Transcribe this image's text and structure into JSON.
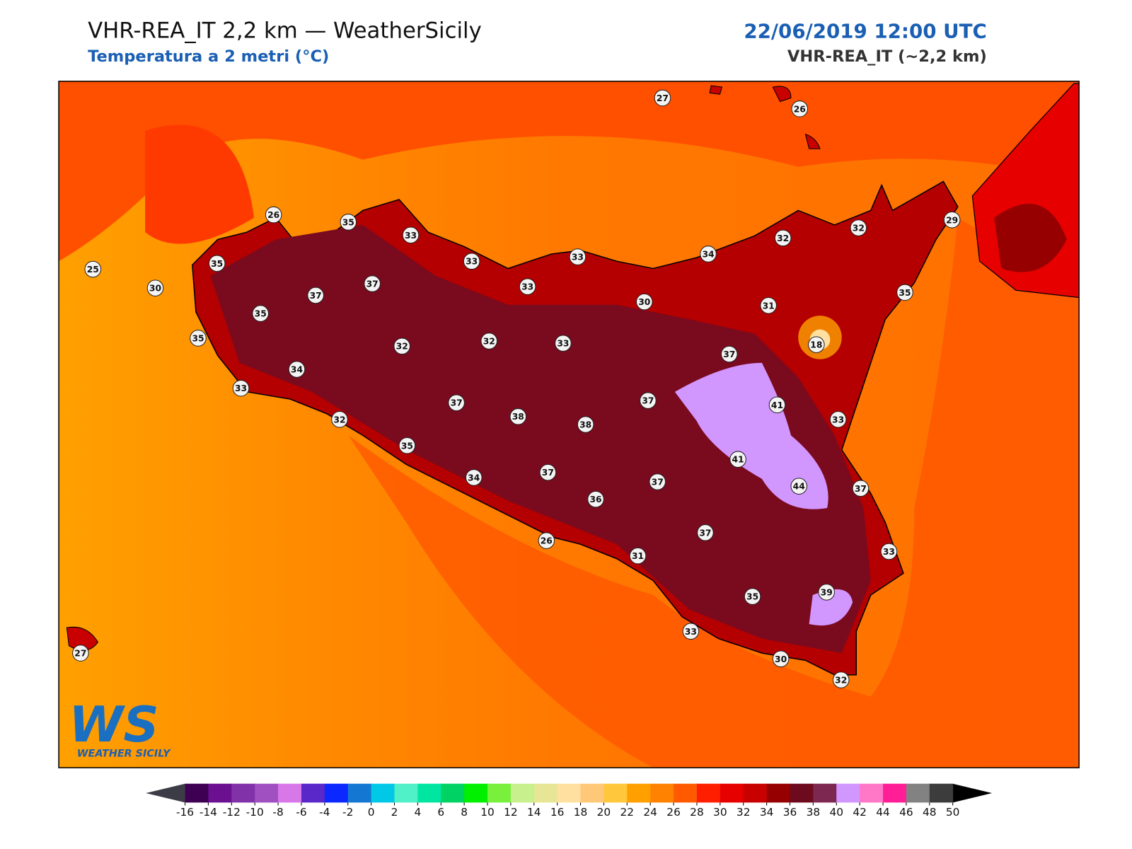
{
  "header": {
    "title": "VHR-REA_IT 2,2 km — WeatherSicily",
    "subtitle": "Temperatura a 2 metri (°C)",
    "date": "22/06/2019 12:00 UTC",
    "model": "VHR-REA_IT (~2,2 km)"
  },
  "stations": [
    27,
    26,
    26,
    35,
    33,
    33,
    33,
    34,
    32,
    32,
    29,
    25,
    35,
    30,
    37,
    37,
    33,
    30,
    31,
    35,
    35,
    35,
    32,
    32,
    33,
    18,
    37,
    34,
    33,
    37,
    37,
    41,
    33,
    32,
    38,
    38,
    35,
    41,
    34,
    37,
    37,
    44,
    37,
    36,
    37,
    26,
    31,
    33,
    35,
    39,
    33,
    30,
    32,
    27
  ],
  "logo": {
    "mark": "WS",
    "name": "WEATHER SICILY"
  },
  "colorbar": {
    "ticks": [
      -16,
      -14,
      -12,
      -10,
      -8,
      -6,
      -4,
      -2,
      0,
      2,
      4,
      6,
      8,
      10,
      12,
      14,
      16,
      18,
      20,
      22,
      24,
      26,
      28,
      30,
      32,
      34,
      36,
      38,
      40,
      42,
      44,
      46,
      48,
      50
    ],
    "colors": [
      "#3d0052",
      "#6a1090",
      "#8232a8",
      "#a050c0",
      "#d878e8",
      "#5a28c8",
      "#0a28ff",
      "#1478d2",
      "#00c8e6",
      "#50f0c8",
      "#00e6a0",
      "#00d264",
      "#00f000",
      "#78f03c",
      "#c8f08c",
      "#e6e696",
      "#ffe0a0",
      "#ffc878",
      "#ffc83c",
      "#ffa000",
      "#ff8200",
      "#ff5a00",
      "#ff1e00",
      "#e60000",
      "#c80000",
      "#960000",
      "#6e0a1e",
      "#7d2850",
      "#d296ff",
      "#ff78c8",
      "#ff1e96",
      "#828282",
      "#3c3c3c"
    ],
    "under_color": "#3c3c46",
    "over_color": "#000000"
  }
}
